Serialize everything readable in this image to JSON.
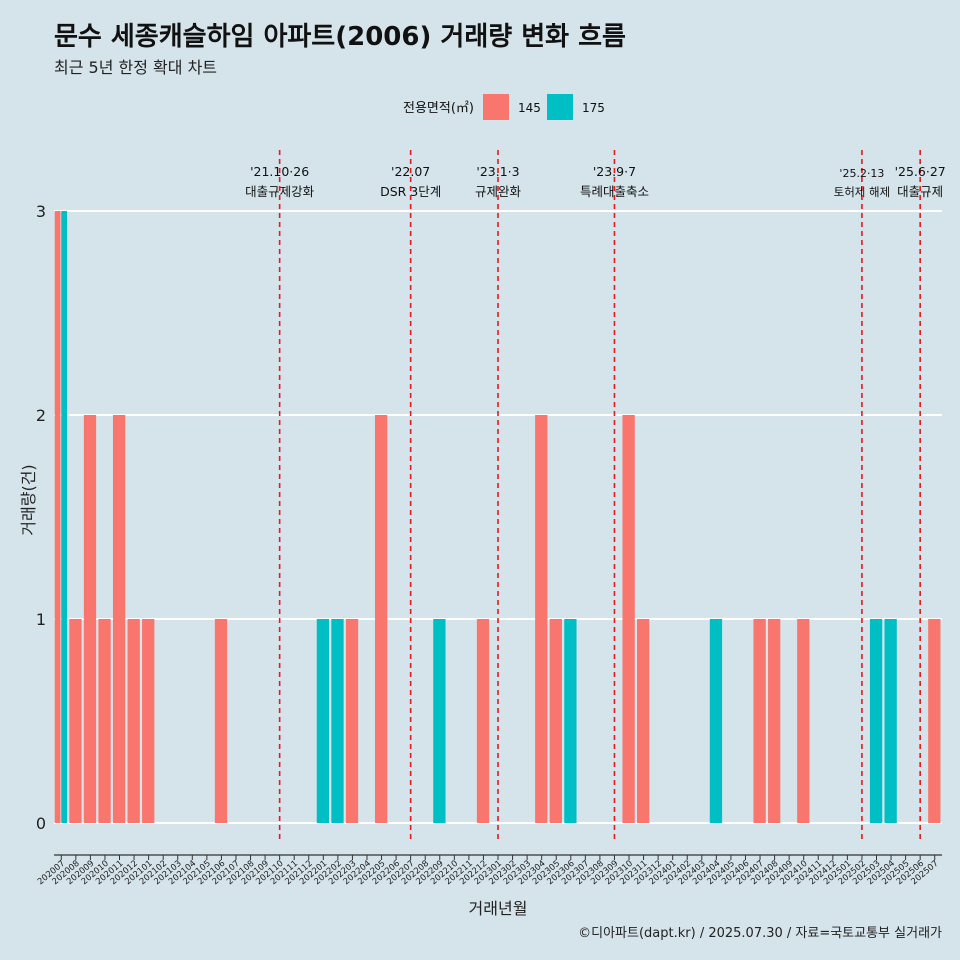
{
  "title": "문수 세종캐슬하임 아파트(2006) 거래량 변화 흐름",
  "subtitle": "최근 5년 한정 확대 차트",
  "caption": "©디아파트(dapt.kr) / 2025.07.30 / 자료=국토교통부 실거래가",
  "colors": {
    "area145": "#f8766d",
    "area175": "#00bfc4",
    "event_line": "#e41a1c",
    "background": "#d5e3ea",
    "grid": "#ffffff"
  },
  "chart_data": {
    "type": "bar",
    "xlabel": "거래년월",
    "ylabel": "거래량(건)",
    "ylim": [
      0,
      3
    ],
    "y_ticks": [
      0,
      1,
      2,
      3
    ],
    "legend": {
      "title": "전용면적(㎡)",
      "position": "top"
    },
    "categories": [
      "202007",
      "202008",
      "202009",
      "202010",
      "202011",
      "202012",
      "202101",
      "202102",
      "202103",
      "202104",
      "202105",
      "202106",
      "202107",
      "202108",
      "202109",
      "202110",
      "202111",
      "202112",
      "202201",
      "202202",
      "202203",
      "202204",
      "202205",
      "202206",
      "202207",
      "202208",
      "202209",
      "202210",
      "202211",
      "202212",
      "202301",
      "202302",
      "202303",
      "202304",
      "202305",
      "202306",
      "202307",
      "202308",
      "202309",
      "202310",
      "202311",
      "202312",
      "202401",
      "202402",
      "202403",
      "202404",
      "202405",
      "202406",
      "202407",
      "202408",
      "202409",
      "202410",
      "202411",
      "202412",
      "202501",
      "202502",
      "202503",
      "202504",
      "202505",
      "202506",
      "202507"
    ],
    "series": [
      {
        "name": "145",
        "color": "#f8766d",
        "values": [
          3,
          1,
          2,
          1,
          2,
          1,
          1,
          0,
          0,
          0,
          0,
          1,
          0,
          0,
          0,
          0,
          0,
          0,
          0,
          0,
          1,
          0,
          2,
          0,
          0,
          0,
          0,
          0,
          0,
          1,
          0,
          0,
          0,
          2,
          1,
          0,
          0,
          0,
          0,
          2,
          1,
          0,
          0,
          0,
          0,
          0,
          0,
          0,
          1,
          1,
          0,
          1,
          0,
          0,
          0,
          0,
          0,
          0,
          0,
          0,
          1
        ]
      },
      {
        "name": "175",
        "color": "#00bfc4",
        "values": [
          3,
          0,
          0,
          0,
          0,
          0,
          0,
          0,
          0,
          0,
          0,
          0,
          0,
          0,
          0,
          0,
          0,
          0,
          1,
          1,
          0,
          0,
          0,
          0,
          0,
          0,
          1,
          0,
          0,
          0,
          0,
          0,
          0,
          0,
          0,
          1,
          0,
          0,
          0,
          0,
          0,
          0,
          0,
          0,
          0,
          1,
          0,
          0,
          0,
          0,
          0,
          0,
          0,
          0,
          0,
          0,
          1,
          1,
          0,
          0,
          0
        ]
      }
    ],
    "events": [
      {
        "x": "202110",
        "date": "'21.10·26",
        "label": "대출규제강화"
      },
      {
        "x": "202207",
        "date": "'22.07",
        "label": "DSR 3단계"
      },
      {
        "x": "202301",
        "date": "'23.1·3",
        "label": "규제완화"
      },
      {
        "x": "202309",
        "date": "'23.9·7",
        "label": "특례대출축소"
      },
      {
        "x": "202502",
        "date": "'25.2·13",
        "label": "토허제 해제"
      },
      {
        "x": "202506",
        "date": "'25.6·27",
        "label": "대출규제"
      }
    ]
  }
}
